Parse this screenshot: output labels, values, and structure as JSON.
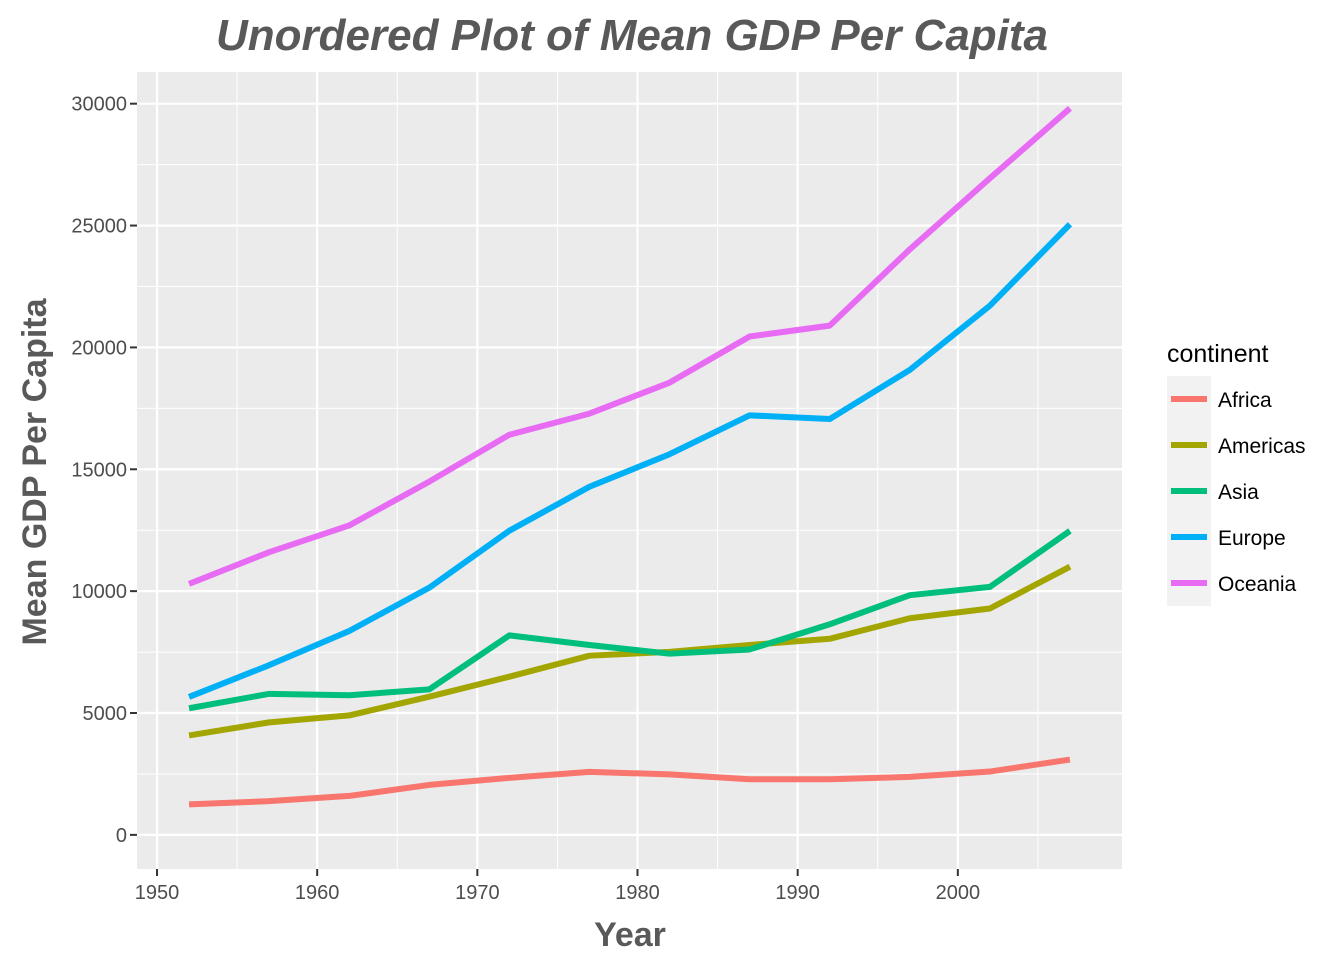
{
  "chart_data": {
    "type": "line",
    "title": "Unordered Plot of Mean GDP Per Capita",
    "xlabel": "Year",
    "ylabel": "Mean GDP Per Capita",
    "xlim": [
      1948.75,
      2010.25
    ],
    "ylim": [
      -1400,
      31300
    ],
    "x_ticks": [
      1950,
      1960,
      1970,
      1980,
      1990,
      2000
    ],
    "y_ticks": [
      0,
      5000,
      10000,
      15000,
      20000,
      25000,
      30000
    ],
    "x_tick_labels": [
      "1950",
      "1960",
      "1970",
      "1980",
      "1990",
      "2000"
    ],
    "y_tick_labels": [
      "0",
      "5000",
      "10000",
      "15000",
      "20000",
      "25000",
      "30000"
    ],
    "background": "#ebebeb",
    "grid": true,
    "legend": {
      "title": "continent",
      "placement": "right"
    },
    "x": [
      1952,
      1957,
      1962,
      1967,
      1972,
      1977,
      1982,
      1987,
      1992,
      1997,
      2002,
      2007
    ],
    "series": [
      {
        "name": "Africa",
        "color": "#F8766D",
        "values": [
          1252,
          1385,
          1598,
          2050,
          2340,
          2586,
          2482,
          2283,
          2282,
          2379,
          2599,
          3089
        ]
      },
      {
        "name": "Americas",
        "color": "#A3A500",
        "values": [
          4079,
          4616,
          4902,
          5668,
          6491,
          7352,
          7507,
          7793,
          8045,
          8889,
          9288,
          11003
        ]
      },
      {
        "name": "Asia",
        "color": "#00BF7D",
        "values": [
          5195,
          5787,
          5729,
          5971,
          8187,
          7791,
          7434,
          7608,
          8640,
          9834,
          10174,
          12473
        ]
      },
      {
        "name": "Europe",
        "color": "#00B0F6",
        "values": [
          5661,
          6963,
          8365,
          10144,
          12480,
          14284,
          15618,
          17214,
          17062,
          19077,
          21712,
          25054
        ]
      },
      {
        "name": "Oceania",
        "color": "#E76BF3",
        "values": [
          10298,
          11599,
          12696,
          14495,
          16418,
          17284,
          18555,
          20448,
          20894,
          24024,
          26939,
          29810
        ]
      }
    ]
  }
}
